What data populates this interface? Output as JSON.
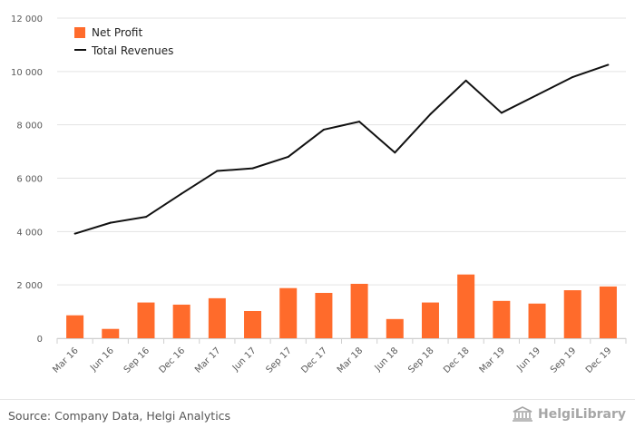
{
  "chart_data": {
    "type": "bar+line",
    "categories": [
      "Mar 16",
      "Jun 16",
      "Sep 16",
      "Dec 16",
      "Mar 17",
      "Jun 17",
      "Sep 17",
      "Dec 17",
      "Mar 18",
      "Jun 18",
      "Sep 18",
      "Dec 18",
      "Mar 19",
      "Jun 19",
      "Sep 19",
      "Dec 19"
    ],
    "series": [
      {
        "name": "Net Profit",
        "type": "bar",
        "color": "#ff6b2b",
        "values": [
          860,
          350,
          1340,
          1260,
          1500,
          1020,
          1880,
          1700,
          2040,
          720,
          1340,
          2390,
          1400,
          1300,
          1800,
          1940
        ]
      },
      {
        "name": "Total Revenues",
        "type": "line",
        "color": "#111111",
        "values": [
          3920,
          4330,
          4550,
          5420,
          6270,
          6370,
          6800,
          7820,
          8120,
          6960,
          8400,
          9660,
          8450,
          9120,
          9790,
          10250
        ]
      }
    ],
    "yticks": [
      0,
      2000,
      4000,
      6000,
      8000,
      10000,
      12000
    ],
    "ytick_labels": [
      "0",
      "2 000",
      "4 000",
      "6 000",
      "8 000",
      "10 000",
      "12 000"
    ],
    "ylim": [
      0,
      12000
    ],
    "grid": true,
    "legend": "top-left",
    "title": "",
    "xlabel": "",
    "ylabel": ""
  },
  "footer": {
    "source": "Source: Company Data, Helgi Analytics",
    "brand": "HelgiLibrary"
  }
}
